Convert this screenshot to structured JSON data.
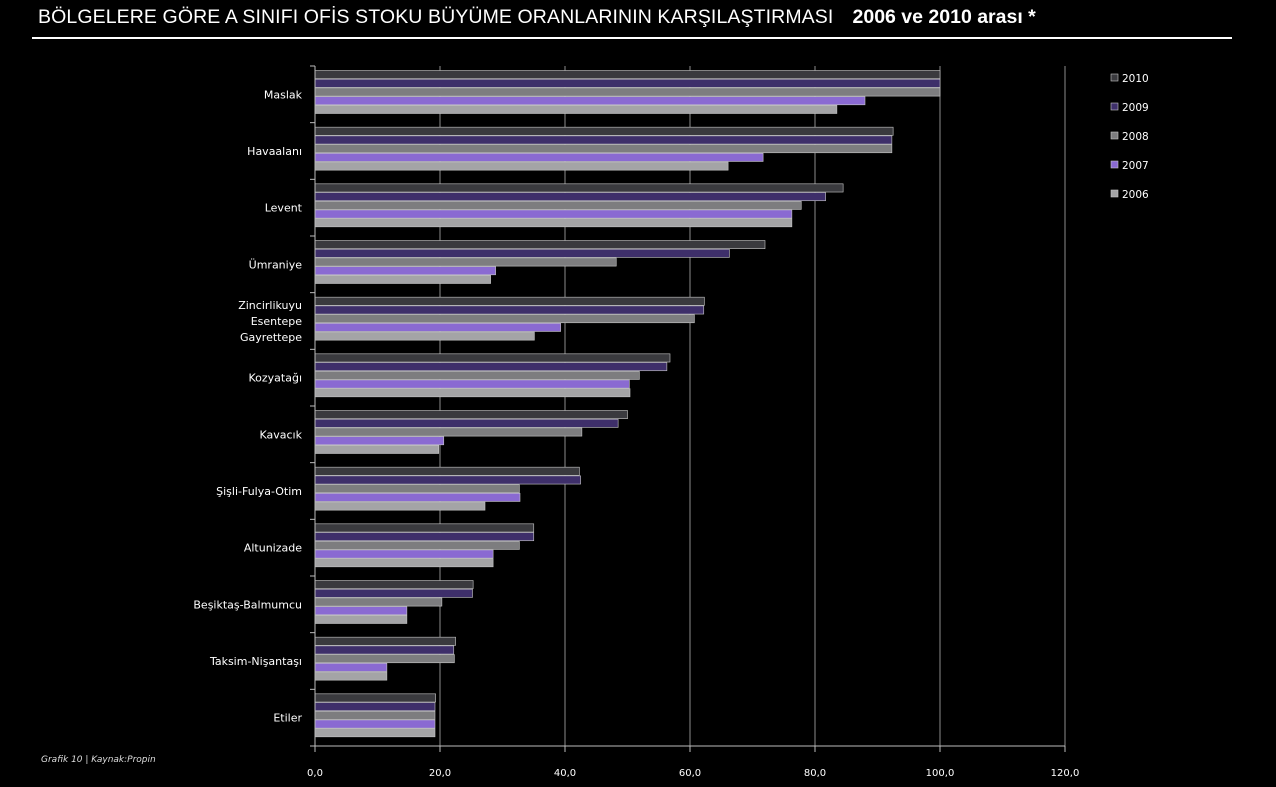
{
  "title": "BÖLGELERE GÖRE A SINIFI OFİS STOKU BÜYÜME ORANLARININ KARŞILAŞTIRMASI",
  "subtitle": "2006 ve 2010 arası *",
  "source": "Grafik 10 | Kaynak:Propin",
  "colors": {
    "2010": "#3a3a3e",
    "2009": "#3e2f6a",
    "2008": "#7d7d7f",
    "2007": "#8a6ad2",
    "2006": "#a4a4a6"
  },
  "chart_data": {
    "type": "bar",
    "orientation": "horizontal",
    "title": "BÖLGELERE GÖRE A SINIFI OFİS STOKU BÜYÜME ORANLARININ KARŞILAŞTIRMASI",
    "subtitle": "2006 ve 2010 arası *",
    "xlim": [
      0,
      120
    ],
    "xticks": [
      "0,0",
      "20,0",
      "40,0",
      "60,0",
      "80,0",
      "100,0",
      "120,0"
    ],
    "grid": true,
    "legend_position": "top-right",
    "legend": [
      "2010",
      "2009",
      "2008",
      "2007",
      "2006"
    ],
    "categories": [
      [
        "Maslak"
      ],
      [
        "Havaalanı"
      ],
      [
        "Levent"
      ],
      [
        "Ümraniye"
      ],
      [
        "Zincirlikuyu",
        "Esentepe",
        "Gayrettepe"
      ],
      [
        "Kozyatağı"
      ],
      [
        "Kavacık"
      ],
      [
        "Şişli-Fulya-Otim"
      ],
      [
        "Altunizade"
      ],
      [
        "Beşiktaş-Balmumcu"
      ],
      [
        "Taksim-Nişantaşı"
      ],
      [
        "Etiler"
      ]
    ],
    "series": [
      {
        "name": "2010",
        "values": [
          100,
          92.5,
          84.5,
          72,
          62.3,
          56.8,
          50,
          42.3,
          35,
          25.3,
          22.5,
          19.3
        ]
      },
      {
        "name": "2009",
        "values": [
          100,
          92.3,
          81.7,
          66.3,
          62.2,
          56.3,
          48.5,
          42.5,
          35,
          25.2,
          22.2,
          19.2
        ]
      },
      {
        "name": "2008",
        "values": [
          100,
          92.3,
          77.8,
          48.2,
          60.7,
          51.9,
          42.7,
          32.7,
          32.7,
          20.3,
          22.3,
          19.2
        ]
      },
      {
        "name": "2007",
        "values": [
          88,
          71.7,
          76.3,
          28.9,
          39.3,
          50.3,
          20.6,
          32.8,
          28.5,
          14.7,
          11.5,
          19.2
        ]
      },
      {
        "name": "2006",
        "values": [
          83.5,
          66.1,
          76.3,
          28.1,
          35.1,
          50.4,
          19.8,
          27.2,
          28.5,
          14.7,
          11.5,
          19.2
        ]
      }
    ]
  }
}
